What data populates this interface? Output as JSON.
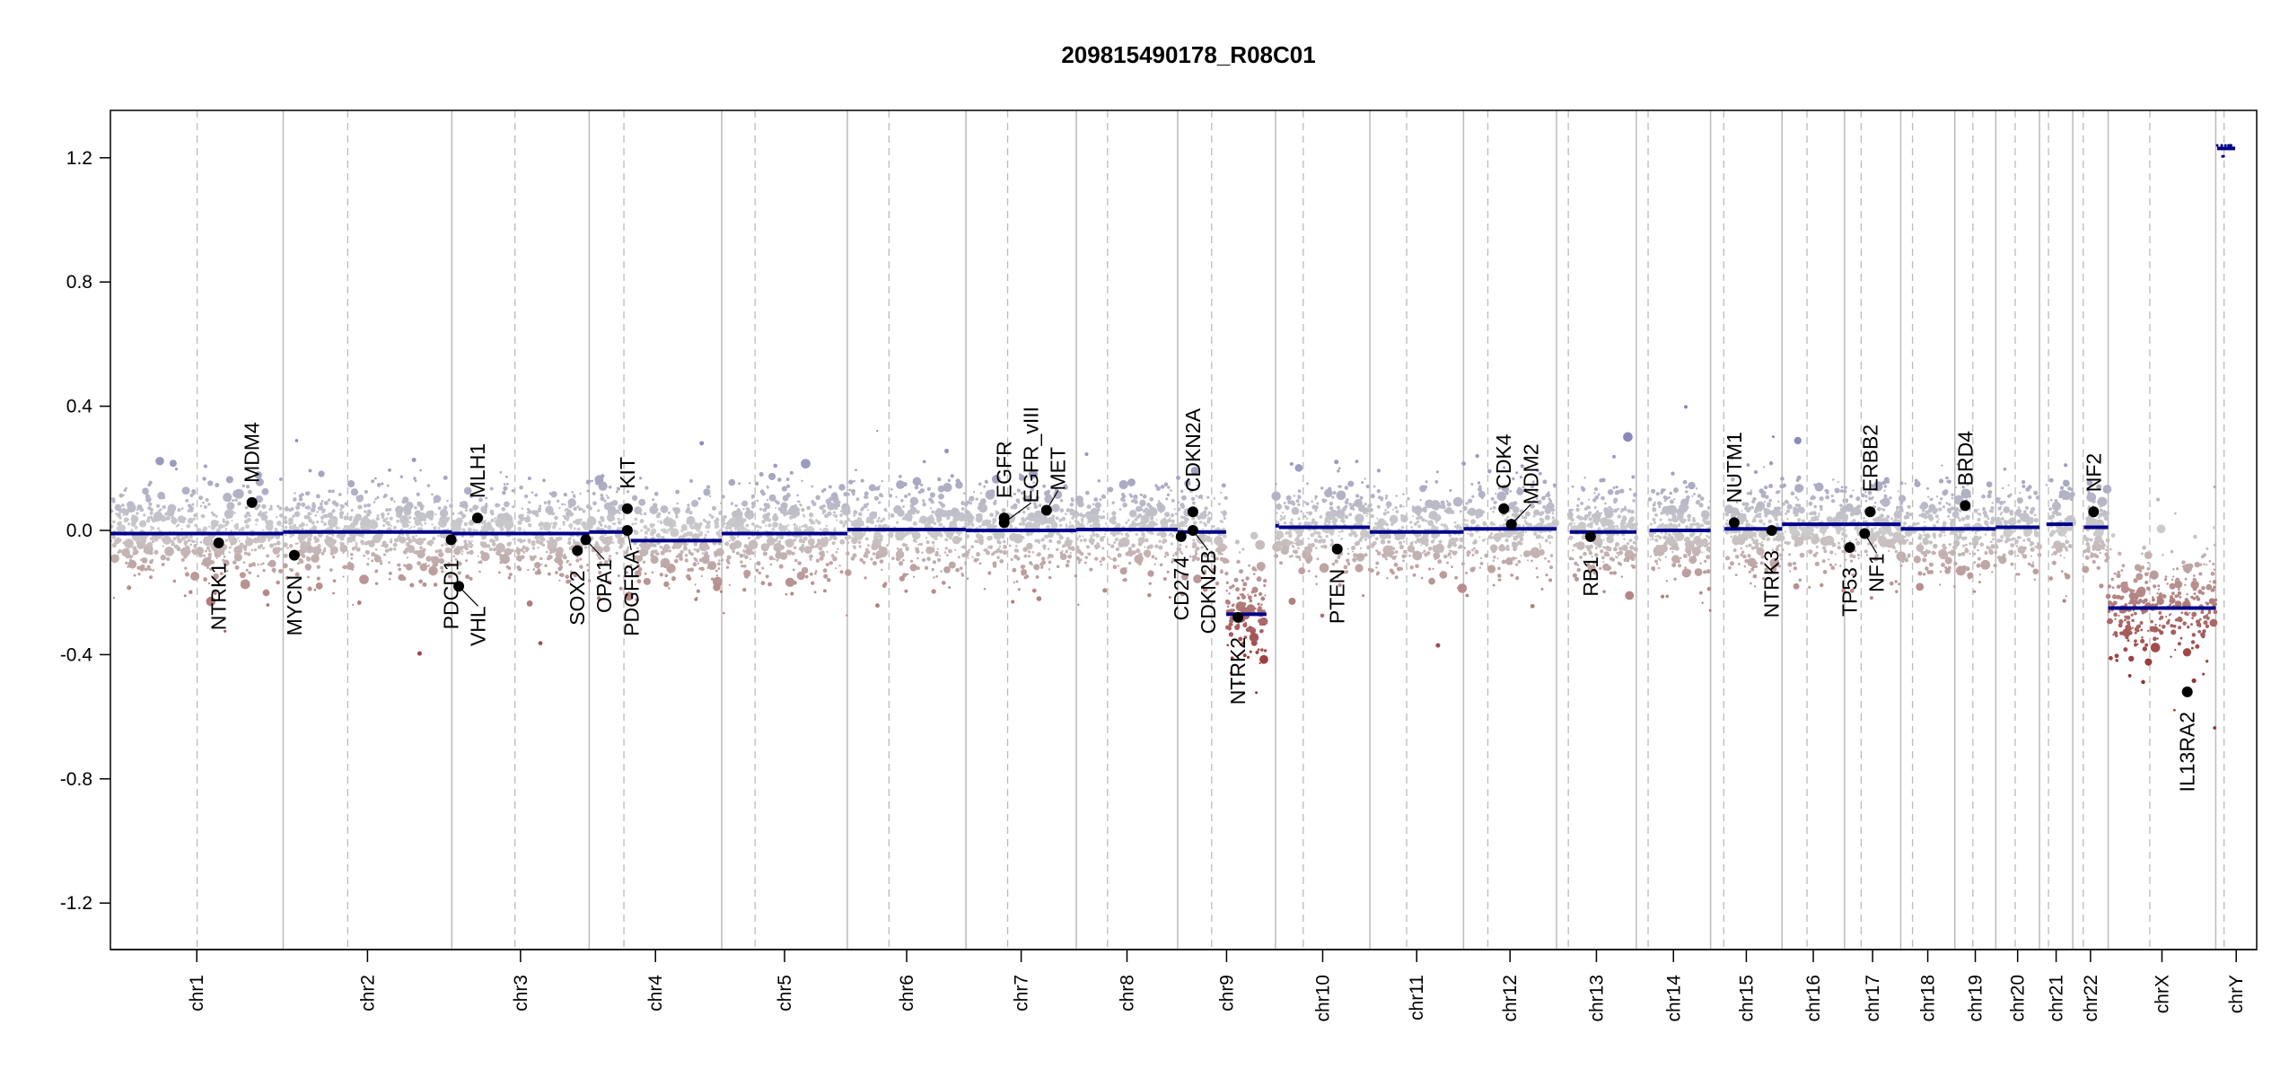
{
  "chart_data": {
    "type": "scatter",
    "title": "209815490178_R08C01",
    "xlabel": "",
    "ylabel": "",
    "ylim": [
      -1.35,
      1.35
    ],
    "y_ticks": [
      "1.2",
      "0.8",
      "0.4",
      "0.0",
      "-0.4",
      "-0.8",
      "-1.2"
    ],
    "y_tick_values": [
      1.2,
      0.8,
      0.4,
      0.0,
      -0.4,
      -0.8,
      -1.2
    ],
    "x_units": "Mb (genome position, hg19)",
    "chromosomes": [
      {
        "name": "chr1",
        "length": 249,
        "centromere": 125
      },
      {
        "name": "chr2",
        "length": 243,
        "centromere": 93
      },
      {
        "name": "chr3",
        "length": 198,
        "centromere": 91
      },
      {
        "name": "chr4",
        "length": 191,
        "centromere": 50
      },
      {
        "name": "chr5",
        "length": 181,
        "centromere": 48
      },
      {
        "name": "chr6",
        "length": 171,
        "centromere": 60
      },
      {
        "name": "chr7",
        "length": 159,
        "centromere": 60
      },
      {
        "name": "chr8",
        "length": 146,
        "centromere": 45
      },
      {
        "name": "chr9",
        "length": 141,
        "centromere": 49
      },
      {
        "name": "chr10",
        "length": 136,
        "centromere": 40
      },
      {
        "name": "chr11",
        "length": 135,
        "centromere": 53
      },
      {
        "name": "chr12",
        "length": 134,
        "centromere": 35
      },
      {
        "name": "chr13",
        "length": 115,
        "centromere": 17
      },
      {
        "name": "chr14",
        "length": 107,
        "centromere": 17
      },
      {
        "name": "chr15",
        "length": 103,
        "centromere": 19
      },
      {
        "name": "chr16",
        "length": 90,
        "centromere": 36
      },
      {
        "name": "chr17",
        "length": 81,
        "centromere": 24
      },
      {
        "name": "chr18",
        "length": 78,
        "centromere": 17
      },
      {
        "name": "chr19",
        "length": 59,
        "centromere": 26
      },
      {
        "name": "chr20",
        "length": 63,
        "centromere": 28
      },
      {
        "name": "chr21",
        "length": 48,
        "centromere": 13
      },
      {
        "name": "chr22",
        "length": 51,
        "centromere": 15
      },
      {
        "name": "chrX",
        "length": 155,
        "centromere": 60
      },
      {
        "name": "chrY",
        "length": 59,
        "centromere": 12
      }
    ],
    "segments": [
      {
        "chrom": "chr1",
        "start": 0,
        "end": 249,
        "value": -0.01
      },
      {
        "chrom": "chr2",
        "start": 0,
        "end": 243,
        "value": -0.005
      },
      {
        "chrom": "chr3",
        "start": 0,
        "end": 198,
        "value": -0.01
      },
      {
        "chrom": "chr4",
        "start": 0,
        "end": 60,
        "value": -0.005
      },
      {
        "chrom": "chr4",
        "start": 60,
        "end": 191,
        "value": -0.033
      },
      {
        "chrom": "chr5",
        "start": 0,
        "end": 181,
        "value": -0.01
      },
      {
        "chrom": "chr6",
        "start": 0,
        "end": 171,
        "value": 0.003
      },
      {
        "chrom": "chr7",
        "start": 0,
        "end": 159,
        "value": 0.0
      },
      {
        "chrom": "chr8",
        "start": 0,
        "end": 146,
        "value": 0.003
      },
      {
        "chrom": "chr9",
        "start": 0,
        "end": 70,
        "value": -0.005
      },
      {
        "chrom": "chr9",
        "start": 70,
        "end": 128,
        "value": -0.27
      },
      {
        "chrom": "chr10",
        "start": 0,
        "end": 5,
        "value": 0.015
      },
      {
        "chrom": "chr10",
        "start": 5,
        "end": 136,
        "value": 0.01
      },
      {
        "chrom": "chr11",
        "start": 0,
        "end": 135,
        "value": -0.005
      },
      {
        "chrom": "chr12",
        "start": 0,
        "end": 134,
        "value": 0.005
      },
      {
        "chrom": "chr13",
        "start": 19,
        "end": 115,
        "value": -0.005
      },
      {
        "chrom": "chr14",
        "start": 19,
        "end": 107,
        "value": 0.0
      },
      {
        "chrom": "chr15",
        "start": 20,
        "end": 103,
        "value": 0.005
      },
      {
        "chrom": "chr16",
        "start": 0,
        "end": 90,
        "value": 0.02
      },
      {
        "chrom": "chr17",
        "start": 0,
        "end": 81,
        "value": 0.02
      },
      {
        "chrom": "chr18",
        "start": 0,
        "end": 78,
        "value": 0.005
      },
      {
        "chrom": "chr19",
        "start": 0,
        "end": 59,
        "value": 0.005
      },
      {
        "chrom": "chr20",
        "start": 0,
        "end": 63,
        "value": 0.01
      },
      {
        "chrom": "chr21",
        "start": 10,
        "end": 48,
        "value": 0.02
      },
      {
        "chrom": "chr22",
        "start": 16,
        "end": 51,
        "value": 0.01
      },
      {
        "chrom": "chrX",
        "start": 0,
        "end": 155,
        "value": -0.25
      },
      {
        "chrom": "chrY",
        "start": 2,
        "end": 28,
        "value": 1.23
      }
    ],
    "genes": [
      {
        "name": "NTRK1",
        "chrom": "chr1",
        "pos": 156,
        "value": -0.04
      },
      {
        "name": "MDM4",
        "chrom": "chr1",
        "pos": 204,
        "value": 0.09
      },
      {
        "name": "MYCN",
        "chrom": "chr2",
        "pos": 16,
        "value": -0.08
      },
      {
        "name": "PDCD1",
        "chrom": "chr2",
        "pos": 242,
        "value": -0.03
      },
      {
        "name": "VHL",
        "chrom": "chr3",
        "pos": 10,
        "value": -0.18
      },
      {
        "name": "MLH1",
        "chrom": "chr3",
        "pos": 37,
        "value": 0.04
      },
      {
        "name": "SOX2",
        "chrom": "chr3",
        "pos": 181,
        "value": -0.065
      },
      {
        "name": "OPA1",
        "chrom": "chr3",
        "pos": 193,
        "value": -0.03
      },
      {
        "name": "KIT",
        "chrom": "chr4",
        "pos": 55,
        "value": 0.07
      },
      {
        "name": "PDGFRA",
        "chrom": "chr4",
        "pos": 55,
        "value": 0.0
      },
      {
        "name": "EGFR",
        "chrom": "chr7",
        "pos": 55,
        "value": 0.04
      },
      {
        "name": "EGFR_vIII",
        "chrom": "chr7",
        "pos": 55,
        "value": 0.025
      },
      {
        "name": "MET",
        "chrom": "chr7",
        "pos": 116,
        "value": 0.065
      },
      {
        "name": "CD274",
        "chrom": "chr9",
        "pos": 5,
        "value": -0.02
      },
      {
        "name": "CDKN2A",
        "chrom": "chr9",
        "pos": 22,
        "value": 0.06
      },
      {
        "name": "CDKN2B",
        "chrom": "chr9",
        "pos": 22,
        "value": 0.0
      },
      {
        "name": "NTRK2",
        "chrom": "chr9",
        "pos": 87,
        "value": -0.28
      },
      {
        "name": "PTEN",
        "chrom": "chr10",
        "pos": 89,
        "value": -0.06
      },
      {
        "name": "CDK4",
        "chrom": "chr12",
        "pos": 58,
        "value": 0.07
      },
      {
        "name": "MDM2",
        "chrom": "chr12",
        "pos": 69,
        "value": 0.02
      },
      {
        "name": "RB1",
        "chrom": "chr13",
        "pos": 49,
        "value": -0.02
      },
      {
        "name": "NUTM1",
        "chrom": "chr15",
        "pos": 34,
        "value": 0.025
      },
      {
        "name": "NTRK3",
        "chrom": "chr15",
        "pos": 88,
        "value": 0.0
      },
      {
        "name": "TP53",
        "chrom": "chr17",
        "pos": 7.5,
        "value": -0.055
      },
      {
        "name": "NF1",
        "chrom": "chr17",
        "pos": 29,
        "value": -0.01
      },
      {
        "name": "ERBB2",
        "chrom": "chr17",
        "pos": 37,
        "value": 0.06
      },
      {
        "name": "BRD4",
        "chrom": "chr19",
        "pos": 15,
        "value": 0.08
      },
      {
        "name": "NF2",
        "chrom": "chr22",
        "pos": 30,
        "value": 0.06
      },
      {
        "name": "IL13RA2",
        "chrom": "chrX",
        "pos": 114,
        "value": -0.52
      }
    ],
    "colors": {
      "segment": "#00008b",
      "gain": "#8888bb",
      "neutral": "#cccccc",
      "loss": "#993333",
      "gene_point": "#000000"
    },
    "grid": "chromosome boundaries (solid) and centromeres (dashed)"
  }
}
